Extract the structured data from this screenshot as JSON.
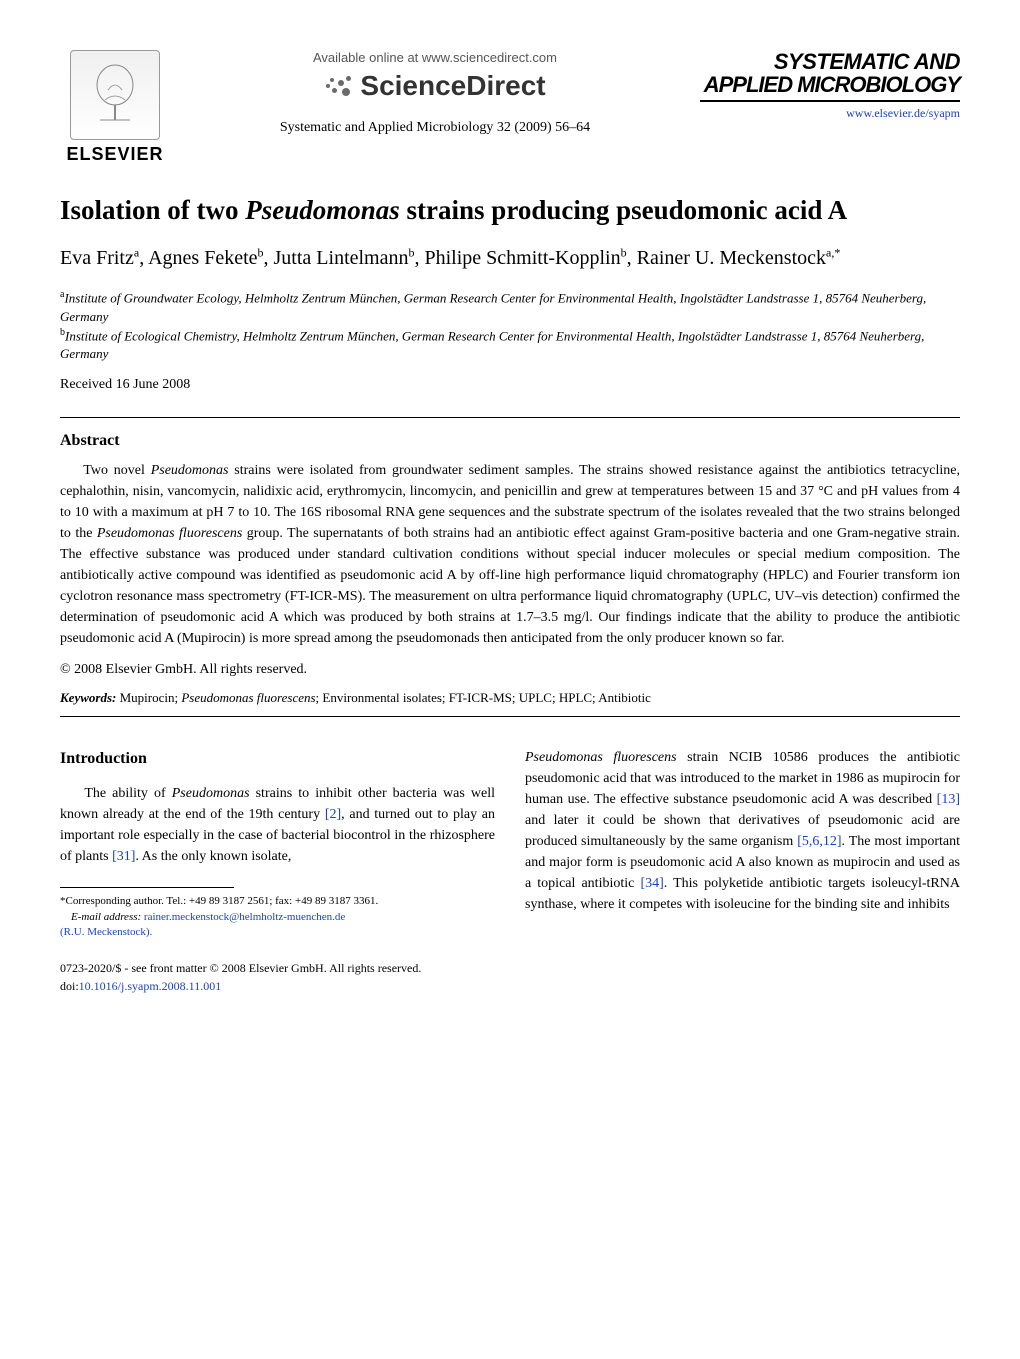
{
  "header": {
    "elsevier_label": "ELSEVIER",
    "available_online": "Available online at www.sciencedirect.com",
    "sciencedirect": "ScienceDirect",
    "citation": "Systematic and Applied Microbiology 32 (2009) 56–64",
    "journal_logo_line1": "SYSTEMATIC AND",
    "journal_logo_line2": "APPLIED MICROBIOLOGY",
    "journal_url": "www.elsevier.de/syapm"
  },
  "article": {
    "title_prefix": "Isolation of two ",
    "title_italic": "Pseudomonas",
    "title_suffix": " strains producing pseudomonic acid A",
    "authors_html": "Eva Fritz<sup>a</sup>, Agnes Fekete<sup>b</sup>, Jutta Lintelmann<sup>b</sup>, Philipe Schmitt-Kopplin<sup>b</sup>, Rainer U. Meckenstock<sup>a,*</sup>",
    "affiliation_a_sup": "a",
    "affiliation_a": "Institute of Groundwater Ecology, Helmholtz Zentrum München, German Research Center for Environmental Health, Ingolstädter Landstrasse 1, 85764 Neuherberg, Germany",
    "affiliation_b_sup": "b",
    "affiliation_b": "Institute of Ecological Chemistry, Helmholtz Zentrum München, German Research Center for Environmental Health, Ingolstädter Landstrasse 1, 85764 Neuherberg, Germany",
    "received": "Received 16 June 2008"
  },
  "abstract": {
    "heading": "Abstract",
    "body_part1": "Two novel ",
    "body_italic1": "Pseudomonas",
    "body_part2": " strains were isolated from groundwater sediment samples. The strains showed resistance against the antibiotics tetracycline, cephalothin, nisin, vancomycin, nalidixic acid, erythromycin, lincomycin, and penicillin and grew at temperatures between 15 and 37 °C and pH values from 4 to 10 with a maximum at pH 7 to 10. The 16S ribosomal RNA gene sequences and the substrate spectrum of the isolates revealed that the two strains belonged to the ",
    "body_italic2": "Pseudomonas fluorescens",
    "body_part3": " group. The supernatants of both strains had an antibiotic effect against Gram-positive bacteria and one Gram-negative strain. The effective substance was produced under standard cultivation conditions without special inducer molecules or special medium composition. The antibiotically active compound was identified as pseudomonic acid A by off-line high performance liquid chromatography (HPLC) and Fourier transform ion cyclotron resonance mass spectrometry (FT-ICR-MS). The measurement on ultra performance liquid chromatography (UPLC, UV–vis detection) confirmed the determination of pseudomonic acid A which was produced by both strains at 1.7–3.5 mg/l. Our findings indicate that the ability to produce the antibiotic pseudomonic acid A (Mupirocin) is more spread among the pseudomonads then anticipated from the only producer known so far.",
    "copyright": "© 2008 Elsevier GmbH. All rights reserved.",
    "keywords_label": "Keywords:",
    "keywords_part1": " Mupirocin; ",
    "keywords_italic": "Pseudomonas fluorescens",
    "keywords_part2": "; Environmental isolates; FT-ICR-MS; UPLC; HPLC; Antibiotic"
  },
  "introduction": {
    "heading": "Introduction",
    "col1_part1": "The ability of ",
    "col1_italic1": "Pseudomonas",
    "col1_part2": " strains to inhibit other bacteria was well known already at the end of the 19th century ",
    "col1_cite1": "[2]",
    "col1_part3": ", and turned out to play an important role especially in the case of bacterial biocontrol in the rhizosphere of plants ",
    "col1_cite2": "[31]",
    "col1_part4": ". As the only known isolate, ",
    "col2_italic1": "Pseudomonas fluorescens",
    "col2_part1": " strain NCIB 10586 produces the antibiotic pseudomonic acid that was introduced to the market in 1986 as mupirocin for human use. The effective substance pseudomonic acid A was described ",
    "col2_cite1": "[13]",
    "col2_part2": " and later it could be shown that derivatives of pseudomonic acid are produced simultaneously by the same organism ",
    "col2_cite2": "[5,6,12]",
    "col2_part3": ". The most important and major form is pseudomonic acid A also known as mupirocin and used as a topical antibiotic ",
    "col2_cite3": "[34]",
    "col2_part4": ". This polyketide antibiotic targets isoleucyl-tRNA synthase, where it competes with isoleucine for the binding site and inhibits"
  },
  "footnote": {
    "corresponding": "*Corresponding author. Tel.: +49 89 3187 2561; fax: +49 89 3187 3361.",
    "email_label": "E-mail address:",
    "email": "rainer.meckenstock@helmholtz-muenchen.de",
    "email_author": "(R.U. Meckenstock)."
  },
  "footer": {
    "copyright": "0723-2020/$ - see front matter © 2008 Elsevier GmbH. All rights reserved.",
    "doi_label": "doi:",
    "doi": "10.1016/j.syapm.2008.11.001"
  },
  "colors": {
    "link_color": "#1a3fcc",
    "text_color": "#000000",
    "background": "#ffffff"
  }
}
